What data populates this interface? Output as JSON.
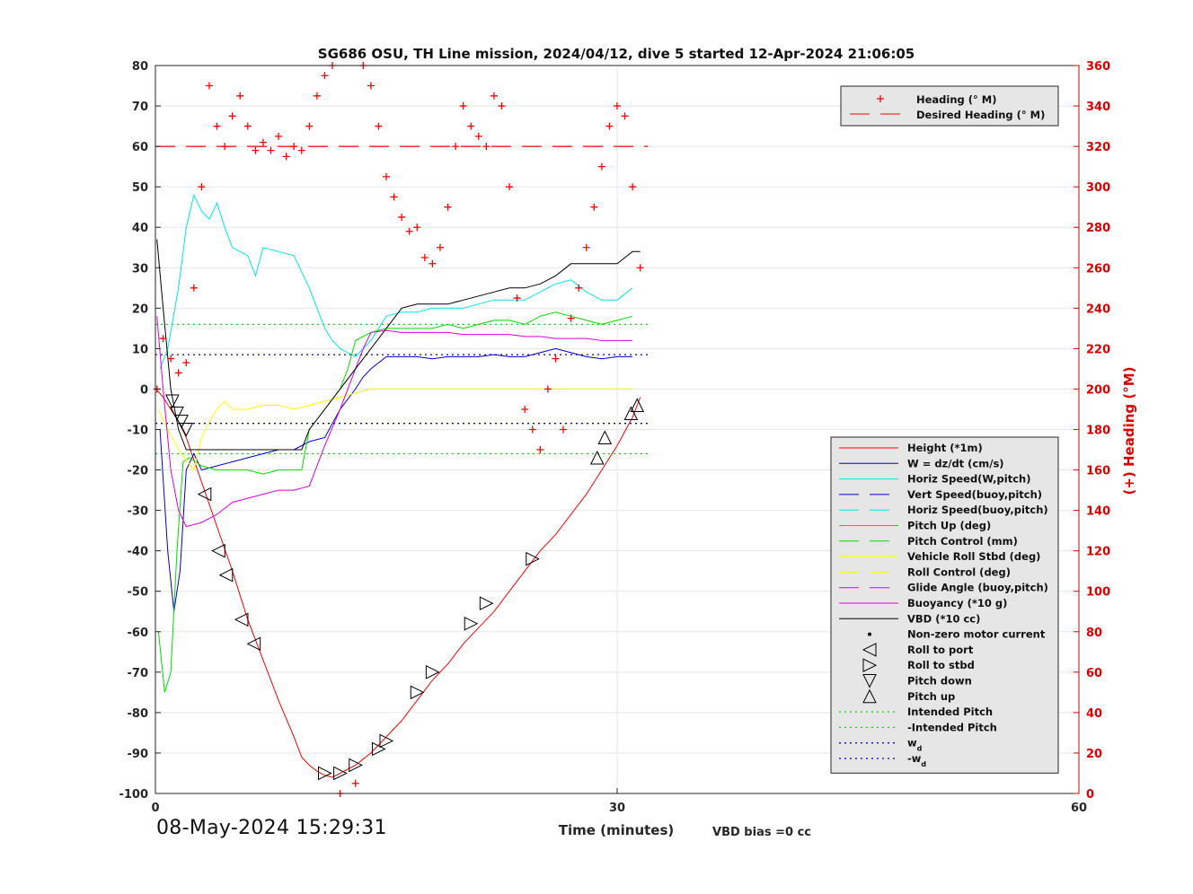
{
  "footer": {
    "timestamp": "08-May-2024 15:29:31",
    "vbd_bias": "VBD bias =0 cc"
  },
  "chart_data": {
    "type": "line",
    "title": "SG686 OSU, TH Line mission, 2024/04/12, dive 5 started 12-Apr-2024 21:06:05",
    "xlabel": "Time (minutes)",
    "ylabel": "",
    "y2label": "(+) Heading (°M)",
    "xlim": [
      0,
      60
    ],
    "ylim": [
      -100,
      80
    ],
    "y2lim": [
      0,
      360
    ],
    "x_ticks": [
      0,
      30,
      60
    ],
    "y_ticks": [
      -100,
      -90,
      -80,
      -70,
      -60,
      -50,
      -40,
      -30,
      -20,
      -10,
      0,
      10,
      20,
      30,
      40,
      50,
      60,
      70,
      80
    ],
    "y2_ticks": [
      0,
      20,
      40,
      60,
      80,
      100,
      120,
      140,
      160,
      180,
      200,
      220,
      240,
      260,
      280,
      300,
      320,
      340,
      360
    ],
    "grid": true,
    "colors": {
      "red": "#ff0000",
      "blue": "#0000cc",
      "cyan": "#00e5ee",
      "green": "#00dd00",
      "yellow": "#ffff00",
      "magenta": "#dd00dd",
      "black": "#000000",
      "dotted_green": "#00dd00",
      "dotted_blue": "#0000cc",
      "axis_right": "#dd0000"
    },
    "legend_heading": {
      "placement": "top-right",
      "items": [
        {
          "label": "Heading (° M)",
          "style": "plus-red"
        },
        {
          "label": "Desired Heading (° M)",
          "style": "dash-red"
        }
      ]
    },
    "legend_main": {
      "placement": "right",
      "items": [
        {
          "label": "Height (*1m)",
          "style": "solid-red"
        },
        {
          "label": "W = dz/dt (cm/s)",
          "style": "solid-blue"
        },
        {
          "label": "Horiz Speed(W,pitch)",
          "style": "solid-cyan"
        },
        {
          "label": "Vert Speed(buoy,pitch)",
          "style": "dash-blue"
        },
        {
          "label": "Horiz Speed(buoy,pitch)",
          "style": "dash-cyan"
        },
        {
          "label": "Pitch Up (deg)",
          "style": "solid-green"
        },
        {
          "label": "Pitch Control (mm)",
          "style": "dash-green"
        },
        {
          "label": "Vehicle Roll Stbd (deg)",
          "style": "solid-yellow"
        },
        {
          "label": "Roll Control (deg)",
          "style": "dash-yellow"
        },
        {
          "label": "Glide Angle (buoy,pitch)",
          "style": "dash-magenta"
        },
        {
          "label": "Buoyancy (*10 g)",
          "style": "solid-magenta"
        },
        {
          "label": "VBD (*10 cc)",
          "style": "solid-black"
        },
        {
          "label": "Non-zero motor current",
          "style": "dot-black"
        },
        {
          "label": "Roll to port",
          "style": "tri-left"
        },
        {
          "label": "Roll to stbd",
          "style": "tri-right"
        },
        {
          "label": "Pitch down",
          "style": "tri-down"
        },
        {
          "label": "Pitch up",
          "style": "tri-up"
        },
        {
          "label": "Intended Pitch",
          "style": "dot-green"
        },
        {
          "label": "-Intended Pitch",
          "style": "dot-green"
        },
        {
          "label": "w",
          "sub": "d",
          "style": "dot-blue"
        },
        {
          "label": "-w",
          "sub": "d",
          "style": "dot-blue"
        }
      ]
    },
    "series": [
      {
        "name": "Height (*1m)",
        "axis": "left",
        "x": [
          0.05,
          0.5,
          1,
          1.5,
          2,
          3,
          4,
          5,
          6,
          7,
          8,
          9,
          9.5,
          10,
          10.5,
          11,
          11.5,
          12,
          12.5,
          13,
          13.5,
          14,
          15,
          16,
          17,
          18,
          19,
          20,
          21,
          22,
          23,
          24,
          25,
          26,
          27,
          28,
          29,
          30,
          31,
          31.5
        ],
        "y": [
          0,
          -2,
          -5,
          -8,
          -12,
          -23,
          -34,
          -45,
          -57,
          -67,
          -77,
          -86,
          -91,
          -93,
          -94.5,
          -95.5,
          -96,
          -95,
          -94,
          -93,
          -91.5,
          -90,
          -86,
          -82,
          -77,
          -72,
          -68,
          -63,
          -59,
          -55,
          -50,
          -45,
          -40,
          -36,
          -31,
          -26,
          -20,
          -14,
          -7,
          -2
        ]
      },
      {
        "name": "W = dz/dt (cm/s)",
        "axis": "left",
        "x": [
          0.3,
          0.8,
          1.2,
          1.6,
          2,
          2.5,
          3,
          4,
          5,
          6,
          7,
          8,
          9,
          9.5,
          10,
          11,
          12,
          13,
          13.5,
          14,
          15,
          16,
          17,
          18,
          19,
          20,
          21,
          22,
          23,
          24,
          25,
          26,
          27,
          28,
          29,
          30,
          31
        ],
        "y": [
          -10,
          -40,
          -55,
          -45,
          -20,
          -16,
          -20,
          -19,
          -18,
          -17,
          -16,
          -15,
          -15,
          -14,
          -13,
          -12,
          -5,
          0,
          3,
          5,
          8,
          8,
          8,
          7.5,
          8,
          8,
          8,
          8.5,
          8,
          8,
          9,
          10,
          9,
          8,
          7.5,
          8,
          8
        ]
      },
      {
        "name": "Horiz Speed(W,pitch)",
        "axis": "left",
        "x": [
          0.3,
          0.8,
          1.5,
          2,
          2.5,
          3,
          3.5,
          4,
          4.5,
          5,
          6,
          6.5,
          7,
          8,
          9,
          10,
          11,
          11.5,
          12,
          13,
          14,
          15,
          16,
          17,
          18,
          19,
          20,
          21,
          22,
          23,
          24,
          25,
          26,
          27,
          28,
          29,
          30,
          31
        ],
        "y": [
          5,
          10,
          25,
          40,
          48,
          44,
          42,
          46,
          40,
          35,
          33,
          28,
          35,
          34,
          33,
          25,
          15,
          12,
          10,
          8,
          12,
          18,
          19,
          19,
          20,
          20,
          20,
          21,
          22,
          22,
          22,
          24,
          26,
          27,
          24,
          22,
          22,
          25
        ]
      },
      {
        "name": "Pitch Up (deg)",
        "axis": "left",
        "x": [
          0.2,
          0.6,
          1,
          1.4,
          1.8,
          2.2,
          3,
          4,
          5,
          6,
          7,
          8,
          9,
          9.5,
          10,
          11,
          12,
          12.5,
          13,
          14,
          15,
          16,
          17,
          18,
          19,
          20,
          21,
          22,
          23,
          24,
          25,
          26,
          27,
          28,
          29,
          30,
          31
        ],
        "y": [
          -60,
          -75,
          -70,
          -40,
          -18,
          -17,
          -19,
          -20,
          -20,
          -20,
          -21,
          -20,
          -20,
          -20,
          -10,
          -5,
          0,
          5,
          12,
          14,
          15,
          15,
          15,
          15,
          16,
          15,
          16,
          17,
          17,
          16,
          18,
          19,
          18,
          17,
          16,
          17,
          18
        ]
      },
      {
        "name": "Vehicle Roll Stbd (deg)",
        "axis": "left",
        "x": [
          0.2,
          0.8,
          1.5,
          2.5,
          3,
          3.5,
          4,
          4.5,
          5,
          6,
          7,
          8,
          9,
          10,
          11,
          12,
          13,
          14,
          15,
          16,
          17,
          18,
          19,
          20,
          21,
          22,
          23,
          24,
          25,
          26,
          27,
          28,
          29,
          30,
          31
        ],
        "y": [
          -5,
          -10,
          -15,
          -20,
          -12,
          -8,
          -5,
          -3,
          -5,
          -5,
          -4,
          -4,
          -5,
          -4,
          -3,
          -2,
          -1,
          0,
          0,
          0,
          0,
          0,
          0,
          0,
          0,
          0,
          0,
          0,
          0,
          0,
          0,
          0,
          0,
          0,
          0
        ]
      },
      {
        "name": "Buoyancy (*10 g)",
        "axis": "left",
        "x": [
          0.1,
          0.5,
          1,
          1.5,
          2,
          3,
          4,
          5,
          6,
          7,
          8,
          9,
          10,
          11,
          12,
          13,
          13.5,
          14,
          15,
          16,
          17,
          18,
          19,
          20,
          21,
          22,
          23,
          24,
          25,
          26,
          27,
          28,
          29,
          30,
          31
        ],
        "y": [
          18,
          0,
          -20,
          -30,
          -34,
          -33,
          -31,
          -28,
          -27,
          -26,
          -25,
          -25,
          -24,
          -14,
          -5,
          5,
          10,
          14,
          14.5,
          14,
          14,
          14,
          14,
          13.5,
          13.5,
          13.5,
          13.5,
          13,
          13,
          12.5,
          12.5,
          12.5,
          12,
          12,
          12
        ]
      },
      {
        "name": "VBD (*10 cc)",
        "axis": "left",
        "x": [
          0.1,
          0.5,
          1,
          1.5,
          2,
          3,
          4,
          5,
          6,
          7,
          8,
          9,
          9.5,
          10,
          11,
          12,
          13,
          14,
          15,
          16,
          17,
          18,
          19,
          20,
          21,
          22,
          23,
          24,
          25,
          26,
          27,
          28,
          29,
          30,
          31,
          31.5
        ],
        "y": [
          37,
          20,
          0,
          -10,
          -15,
          -15,
          -15,
          -15,
          -15,
          -15,
          -15,
          -15,
          -15,
          -10,
          -5,
          0,
          5,
          10,
          15,
          20,
          21,
          21,
          21,
          22,
          23,
          24,
          25,
          25,
          26,
          28,
          31,
          31,
          31,
          31,
          34,
          34
        ]
      },
      {
        "name": "Heading (° M)",
        "axis": "right",
        "x": [
          0.1,
          0.5,
          1,
          1.5,
          2,
          2.5,
          3,
          3.5,
          4,
          4.5,
          5,
          5.5,
          6,
          6.5,
          7,
          7.5,
          8,
          8.5,
          9,
          9.5,
          10,
          10.5,
          11,
          11.5,
          12,
          13,
          13.5,
          14,
          14.5,
          15,
          15.5,
          16,
          16.5,
          17,
          17.5,
          18,
          18.5,
          19,
          19.5,
          20,
          20.5,
          21,
          21.5,
          22,
          22.5,
          23,
          23.5,
          24,
          24.5,
          25,
          25.5,
          26,
          26.5,
          27,
          27.5,
          28,
          28.5,
          29,
          29.5,
          30,
          30.5,
          31,
          31.5
        ],
        "y": [
          200,
          225,
          215,
          208,
          213,
          250,
          300,
          350,
          330,
          320,
          335,
          345,
          330,
          318,
          322,
          318,
          325,
          315,
          320,
          318,
          330,
          345,
          355,
          360,
          0,
          5,
          360,
          350,
          330,
          305,
          295,
          285,
          278,
          280,
          265,
          262,
          270,
          290,
          320,
          340,
          330,
          325,
          320,
          345,
          340,
          300,
          245,
          190,
          180,
          170,
          200,
          215,
          180,
          235,
          250,
          270,
          290,
          310,
          330,
          340,
          335,
          300,
          260
        ]
      },
      {
        "name": "Desired Heading (° M)",
        "axis": "right",
        "x": [
          0,
          32
        ],
        "y": [
          320,
          320
        ]
      },
      {
        "name": "Intended Pitch",
        "axis": "left",
        "x": [
          0,
          32
        ],
        "y": [
          16,
          16
        ]
      },
      {
        "name": "-Intended Pitch",
        "axis": "left",
        "x": [
          0,
          32
        ],
        "y": [
          -16,
          -16
        ]
      },
      {
        "name": "w_d",
        "axis": "left",
        "x": [
          0,
          32
        ],
        "y": [
          8.5,
          8.5
        ]
      },
      {
        "name": "-w_d",
        "axis": "left",
        "x": [
          0,
          32
        ],
        "y": [
          -8.5,
          -8.5
        ]
      }
    ],
    "markers": {
      "roll_to_port": [
        [
          3.2,
          -26
        ],
        [
          4.1,
          -40
        ],
        [
          4.6,
          -46
        ],
        [
          5.6,
          -57
        ],
        [
          6.4,
          -63
        ]
      ],
      "pitch_down": [
        [
          1.1,
          -3
        ],
        [
          1.4,
          -6
        ],
        [
          1.7,
          -8
        ],
        [
          2,
          -10
        ]
      ],
      "pitch_up": [
        [
          30.9,
          -6
        ],
        [
          31.3,
          -4
        ],
        [
          29.2,
          -12
        ],
        [
          28.7,
          -17
        ]
      ],
      "roll_to_stbd": [
        [
          11,
          -95
        ],
        [
          12,
          -95
        ],
        [
          13,
          -93
        ],
        [
          14.5,
          -89
        ],
        [
          15,
          -87
        ],
        [
          17,
          -75
        ],
        [
          18,
          -70
        ],
        [
          20.5,
          -58
        ],
        [
          21.5,
          -53
        ],
        [
          24.5,
          -42
        ]
      ]
    }
  }
}
